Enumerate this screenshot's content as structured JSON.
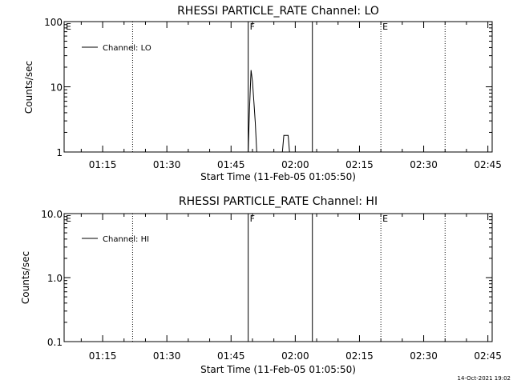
{
  "chart_data": [
    {
      "type": "line",
      "title": "RHESSI PARTICLE_RATE Channel: LO",
      "xlabel": "Start Time (11-Feb-05 01:05:50)",
      "ylabel": "Counts/sec",
      "y_scale": "log",
      "ylim": [
        1,
        100
      ],
      "yticks": [
        {
          "value": 1,
          "label": "1"
        },
        {
          "value": 10,
          "label": "10"
        },
        {
          "value": 100,
          "label": "100"
        }
      ],
      "xlim": [
        "01:06",
        "02:46"
      ],
      "xticks": [
        "01:15",
        "01:30",
        "01:45",
        "02:00",
        "02:15",
        "02:30",
        "02:45"
      ],
      "legend": {
        "placement": "top-left",
        "entries": [
          "Channel: LO"
        ]
      },
      "series": [
        {
          "name": "Channel: LO",
          "points": [
            {
              "x": "01:49",
              "y": 1.0
            },
            {
              "x": "01:49:20",
              "y": 5.0
            },
            {
              "x": "01:49:40",
              "y": 18.0
            },
            {
              "x": "01:50",
              "y": 12.0
            },
            {
              "x": "01:50:20",
              "y": 6.0
            },
            {
              "x": "01:50:40",
              "y": 2.8
            },
            {
              "x": "01:51",
              "y": 1.0
            },
            {
              "x": "01:57",
              "y": 1.0
            },
            {
              "x": "01:57:20",
              "y": 1.8
            },
            {
              "x": "01:58:20",
              "y": 1.8
            },
            {
              "x": "01:58:40",
              "y": 1.0
            }
          ]
        }
      ],
      "event_lines": [
        {
          "x": "01:22",
          "style": "dotted",
          "label": ""
        },
        {
          "x": "01:49",
          "style": "solid",
          "label": "F"
        },
        {
          "x": "02:04",
          "style": "solid",
          "label": ""
        },
        {
          "x": "02:20",
          "style": "dotted",
          "label": "E"
        },
        {
          "x": "02:35",
          "style": "dotted",
          "label": ""
        }
      ],
      "corner_marker": "E"
    },
    {
      "type": "line",
      "title": "RHESSI PARTICLE_RATE Channel: HI",
      "xlabel": "Start Time (11-Feb-05 01:05:50)",
      "ylabel": "Counts/sec",
      "y_scale": "log",
      "ylim": [
        0.1,
        10
      ],
      "yticks": [
        {
          "value": 0.1,
          "label": "0.1"
        },
        {
          "value": 1,
          "label": "1.0"
        },
        {
          "value": 10,
          "label": "10.0"
        }
      ],
      "xlim": [
        "01:06",
        "02:46"
      ],
      "xticks": [
        "01:15",
        "01:30",
        "01:45",
        "02:00",
        "02:15",
        "02:30",
        "02:45"
      ],
      "legend": {
        "placement": "top-left",
        "entries": [
          "Channel: HI"
        ]
      },
      "series": [
        {
          "name": "Channel: HI",
          "points": []
        }
      ],
      "event_lines": [
        {
          "x": "01:22",
          "style": "dotted",
          "label": ""
        },
        {
          "x": "01:49",
          "style": "solid",
          "label": "F"
        },
        {
          "x": "02:04",
          "style": "solid",
          "label": ""
        },
        {
          "x": "02:20",
          "style": "dotted",
          "label": "E"
        },
        {
          "x": "02:35",
          "style": "dotted",
          "label": ""
        }
      ],
      "corner_marker": "E"
    }
  ],
  "footer": {
    "timestamp": "14-Oct-2021 19:02"
  }
}
